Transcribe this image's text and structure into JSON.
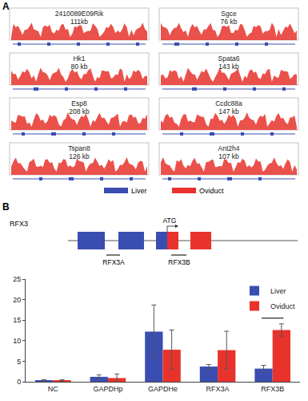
{
  "panel_a": {
    "label": "A",
    "tracks": [
      {
        "gene": "2410089E09Rik",
        "size": "111kb"
      },
      {
        "gene": "Sgce",
        "size": "76 kb"
      },
      {
        "gene": "Hk1",
        "size": "80 kb"
      },
      {
        "gene": "Spata6",
        "size": "143 kb"
      },
      {
        "gene": "Esp8",
        "size": "208 kb"
      },
      {
        "gene": "Ccdc88a",
        "size": "147 kb"
      },
      {
        "gene": "Tspan8",
        "size": "126 kb"
      },
      {
        "gene": "Ant2h4",
        "size": "107 kb"
      }
    ],
    "legend": [
      {
        "name": "Liver",
        "color": "#3a4db0"
      },
      {
        "name": "Oviduct",
        "color": "#e8332c"
      }
    ]
  },
  "panel_b": {
    "label": "B",
    "diagram": {
      "gene": "RFX3",
      "start_codon": "ATG",
      "primers": [
        "RFX3A",
        "RFX3B"
      ]
    }
  },
  "chart_data": {
    "type": "bar",
    "categories": [
      "NC",
      "GAPDHp",
      "GAPDHe",
      "RFX3A",
      "RFX3B"
    ],
    "series": [
      {
        "name": "Liver",
        "color": "#3a4db0",
        "values": [
          0.3,
          1.2,
          12.2,
          3.7,
          3.2
        ],
        "error": [
          0.2,
          0.5,
          6.5,
          0.5,
          0.8
        ]
      },
      {
        "name": "Oviduct",
        "color": "#e8332c",
        "values": [
          0.3,
          0.9,
          7.8,
          7.7,
          12.6
        ],
        "error": [
          0.2,
          1.0,
          4.8,
          4.6,
          1.5
        ]
      }
    ],
    "ylim": [
      0,
      25
    ],
    "yticks": [
      0,
      5,
      10,
      15,
      20,
      25
    ],
    "legend": "top-right",
    "grid": false
  }
}
